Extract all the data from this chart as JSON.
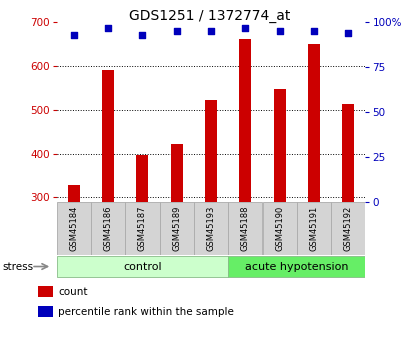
{
  "title": "GDS1251 / 1372774_at",
  "samples": [
    "GSM45184",
    "GSM45186",
    "GSM45187",
    "GSM45189",
    "GSM45193",
    "GSM45188",
    "GSM45190",
    "GSM45191",
    "GSM45192"
  ],
  "counts": [
    328,
    592,
    398,
    422,
    522,
    663,
    547,
    650,
    513
  ],
  "percentiles": [
    93,
    97,
    93,
    95,
    95,
    97,
    95,
    95,
    94
  ],
  "bar_color": "#cc0000",
  "dot_color": "#0000bb",
  "ylim_left": [
    290,
    700
  ],
  "ylim_right": [
    0,
    100
  ],
  "yticks_left": [
    300,
    400,
    500,
    600,
    700
  ],
  "yticks_right": [
    0,
    25,
    50,
    75,
    100
  ],
  "groups": [
    {
      "label": "control",
      "start": 0,
      "end": 5,
      "color": "#ccffcc"
    },
    {
      "label": "acute hypotension",
      "start": 5,
      "end": 9,
      "color": "#66ee66"
    }
  ],
  "stress_label": "stress",
  "legend_items": [
    {
      "color": "#cc0000",
      "label": "count"
    },
    {
      "color": "#0000bb",
      "label": "percentile rank within the sample"
    }
  ],
  "background_color": "#ffffff",
  "title_fontsize": 10,
  "tick_fontsize": 7.5,
  "sample_fontsize": 6,
  "group_fontsize": 8,
  "legend_fontsize": 7.5,
  "grid_color": "#000000",
  "left_tick_color": "#cc0000",
  "right_tick_color": "#0000bb",
  "sample_box_color": "#d4d4d4",
  "sample_box_edge": "#aaaaaa",
  "bar_width": 0.35
}
